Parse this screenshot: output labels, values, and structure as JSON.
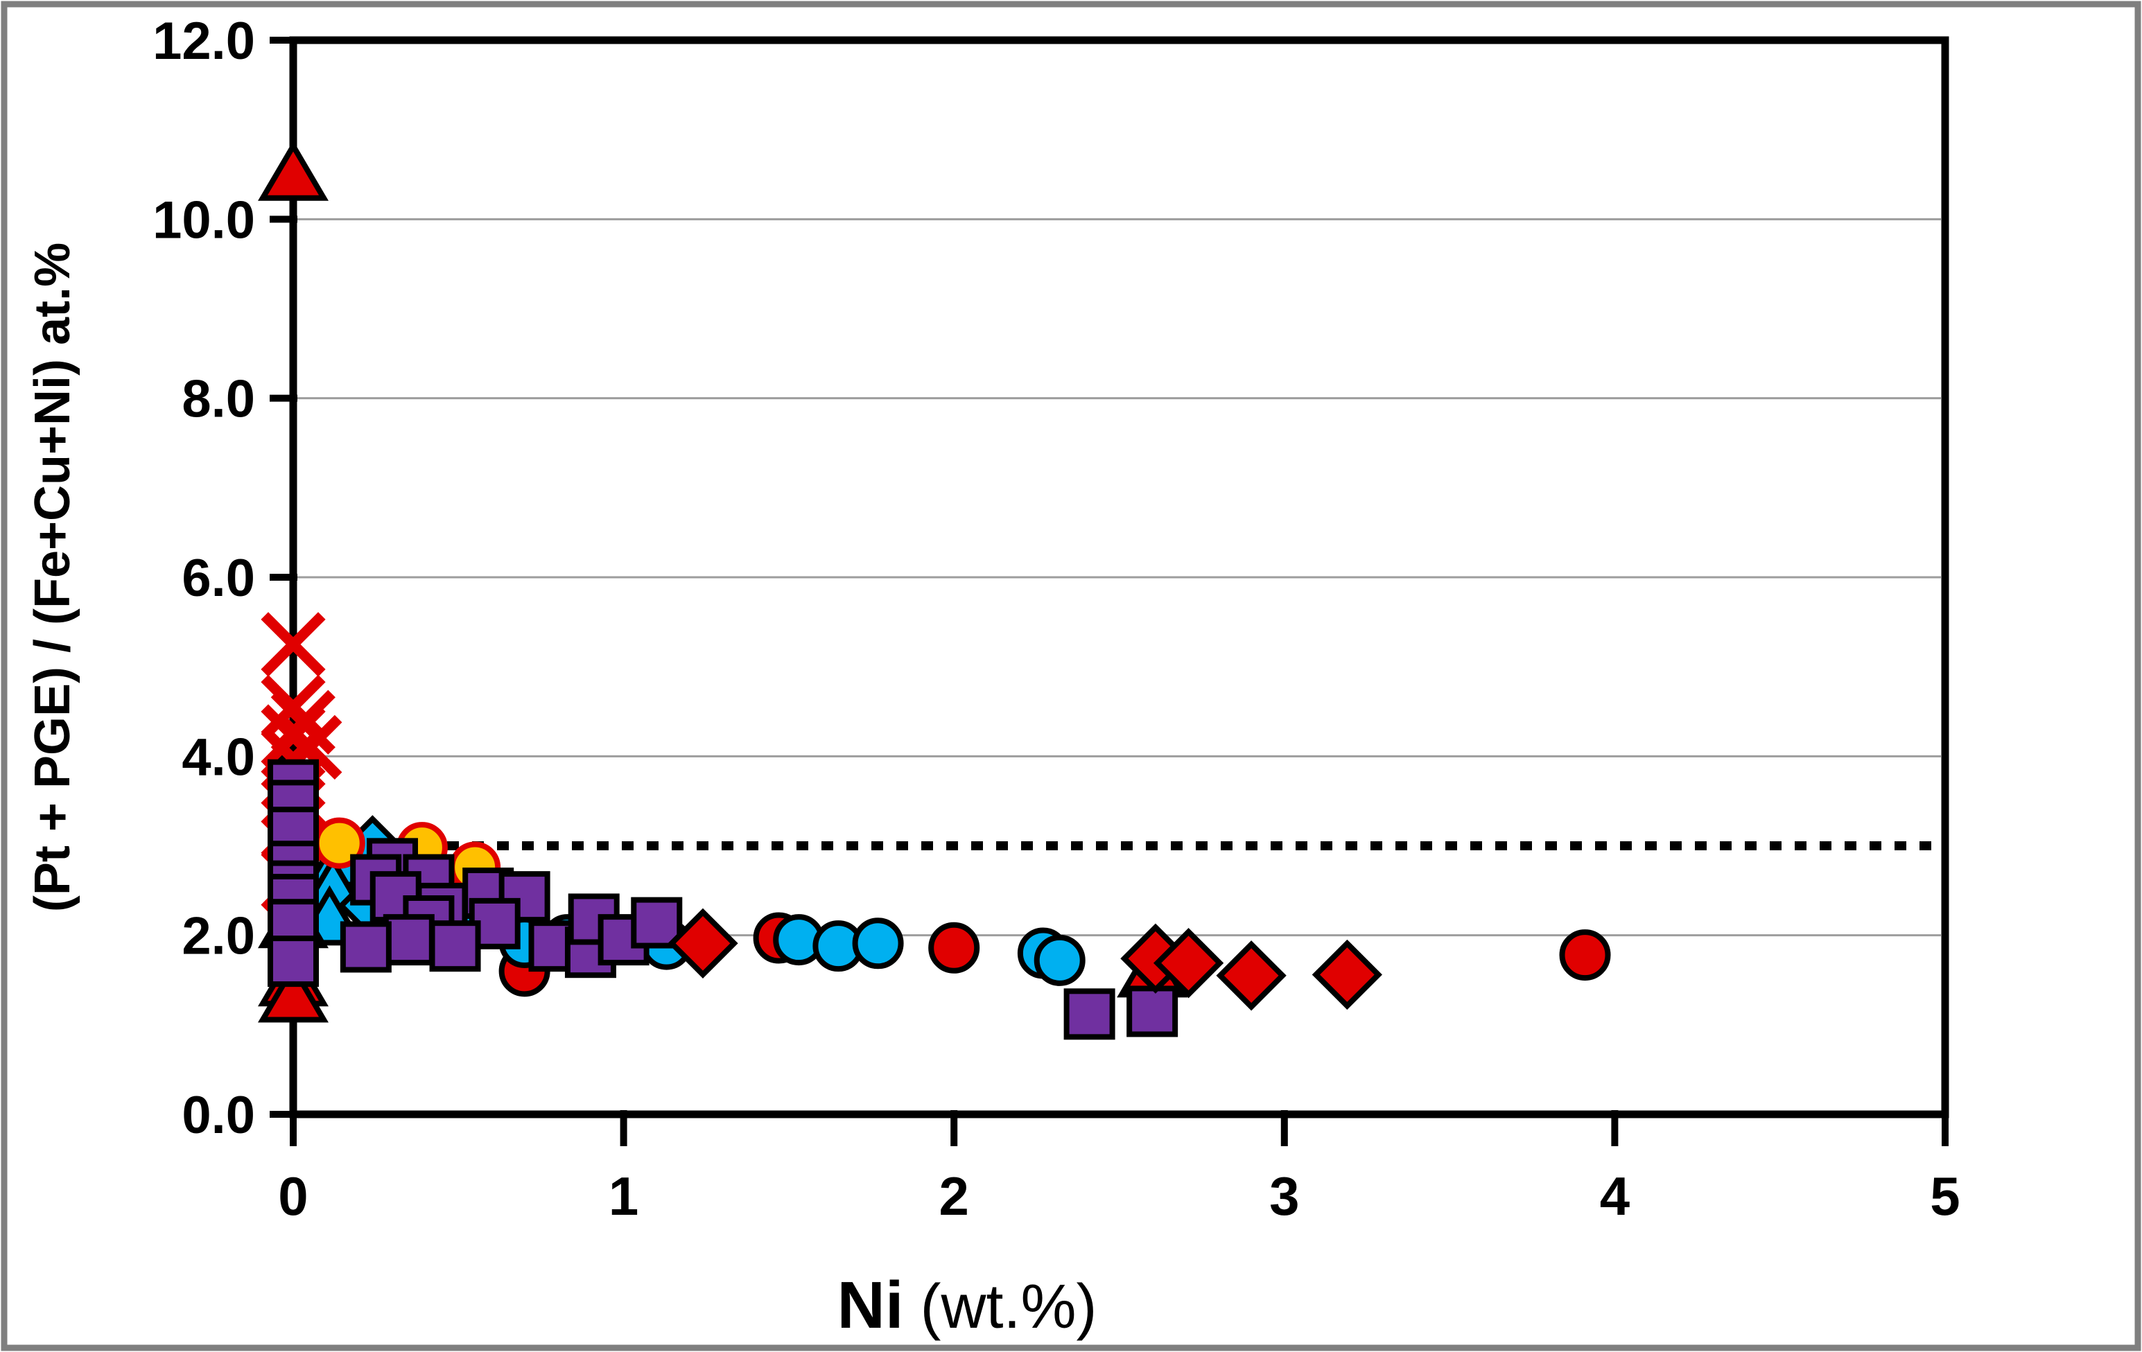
{
  "chart_data": {
    "type": "scatter",
    "title": "",
    "xlabel": "Ni",
    "xlabel_units": "(wt.%)",
    "ylabel": "(Pt + PGE) / (Fe+Cu+Ni) at.%",
    "xlim": [
      0,
      5
    ],
    "ylim": [
      0,
      12
    ],
    "xticks": {
      "values": [
        0,
        1,
        2,
        3,
        4,
        5
      ],
      "labels": [
        "0",
        "1",
        "2",
        "3",
        "4",
        "5"
      ]
    },
    "yticks": {
      "values": [
        0,
        2,
        4,
        6,
        8,
        10,
        12
      ],
      "labels": [
        "0.0",
        "2.0",
        "4.0",
        "6.0",
        "8.0",
        "10.0",
        "12.0"
      ]
    },
    "grid": {
      "axis": "y",
      "values": [
        2,
        4,
        6,
        8,
        10
      ],
      "color": "#9d9d9d"
    },
    "reference_line": {
      "y": 3.0,
      "style": "dotted",
      "color": "#000000"
    },
    "colors": {
      "red": "#e00000",
      "purple": "#7030a0",
      "cyan": "#00b0f0",
      "yellow": "#ffc000",
      "outline": "#000000",
      "frame": "#000000",
      "outer_border": "#7f7f7f"
    },
    "series": [
      {
        "name": "red-x",
        "marker": "x",
        "fill": "#e00000",
        "stroke": "#e00000",
        "points": [
          [
            0,
            5.25
          ],
          [
            0,
            4.55
          ],
          [
            0.03,
            4.38
          ],
          [
            0,
            4.22
          ],
          [
            0.05,
            4.1
          ],
          [
            0,
            3.97
          ],
          [
            0,
            3.55
          ],
          [
            0,
            3.2
          ],
          [
            0,
            2.62
          ]
        ]
      },
      {
        "name": "cyan-triangle",
        "marker": "triangle",
        "fill": "#00b0f0",
        "stroke": "#000000",
        "points": [
          [
            0.14,
            2.83
          ],
          [
            0.12,
            2.52
          ],
          [
            0.11,
            2.18
          ],
          [
            0,
            2.15
          ]
        ]
      },
      {
        "name": "cyan-diamond",
        "marker": "diamond",
        "fill": "#00b0f0",
        "stroke": "#000000",
        "points": [
          [
            0.24,
            2.95
          ],
          [
            0.24,
            2.33
          ]
        ]
      },
      {
        "name": "yellow-circle",
        "marker": "circle",
        "fill": "#ffc000",
        "stroke": "#e00000",
        "points": [
          [
            0.14,
            3.03
          ],
          [
            0.39,
            2.98
          ],
          [
            0.55,
            2.76
          ],
          [
            0.72,
            1.85
          ]
        ]
      },
      {
        "name": "red-circle",
        "marker": "circle",
        "fill": "#e00000",
        "stroke": "#000000",
        "points": [
          [
            0.7,
            1.6
          ],
          [
            1.47,
            1.97
          ],
          [
            2.0,
            1.86
          ],
          [
            3.91,
            1.78
          ]
        ]
      },
      {
        "name": "cyan-circle",
        "marker": "circle",
        "fill": "#00b0f0",
        "stroke": "#000000",
        "points": [
          [
            0.3,
            2.5
          ],
          [
            0.5,
            2.1
          ],
          [
            0.7,
            1.92
          ],
          [
            0.83,
            1.95
          ],
          [
            1.13,
            1.9
          ],
          [
            1.53,
            1.95
          ],
          [
            1.65,
            1.88
          ],
          [
            1.77,
            1.91
          ],
          [
            2.27,
            1.8
          ],
          [
            2.32,
            1.72
          ]
        ]
      },
      {
        "name": "red-triangle",
        "marker": "triangle",
        "fill": "#e00000",
        "stroke": "#000000",
        "points": [
          [
            0,
            10.5
          ],
          [
            0,
            1.5
          ],
          [
            0,
            1.32
          ],
          [
            2.6,
            1.6
          ]
        ]
      },
      {
        "name": "purple-square",
        "marker": "square",
        "fill": "#7030a0",
        "stroke": "#000000",
        "points": [
          [
            0,
            3.68
          ],
          [
            0,
            3.45
          ],
          [
            0,
            3.15
          ],
          [
            0,
            2.77
          ],
          [
            0,
            2.55
          ],
          [
            0,
            2.4
          ],
          [
            0,
            2.12
          ],
          [
            0,
            1.71
          ],
          [
            0.3,
            2.8
          ],
          [
            0.25,
            2.62
          ],
          [
            0.41,
            2.62
          ],
          [
            0.31,
            2.43
          ],
          [
            0.45,
            2.3
          ],
          [
            0.41,
            2.16
          ],
          [
            0.59,
            2.47
          ],
          [
            0.7,
            2.43
          ],
          [
            0.61,
            2.13
          ],
          [
            0.49,
            1.88
          ],
          [
            0.35,
            1.95
          ],
          [
            0.22,
            1.87
          ],
          [
            0.79,
            1.88
          ],
          [
            0.9,
            1.81
          ],
          [
            0.91,
            2.18
          ],
          [
            1.0,
            1.95
          ],
          [
            1.1,
            2.14
          ],
          [
            2.41,
            1.12
          ],
          [
            2.6,
            1.15
          ]
        ]
      },
      {
        "name": "red-diamond",
        "marker": "diamond",
        "fill": "#e00000",
        "stroke": "#000000",
        "points": [
          [
            1.24,
            1.91
          ],
          [
            2.61,
            1.74
          ],
          [
            2.71,
            1.69
          ],
          [
            2.9,
            1.55
          ],
          [
            3.19,
            1.56
          ]
        ]
      }
    ]
  }
}
